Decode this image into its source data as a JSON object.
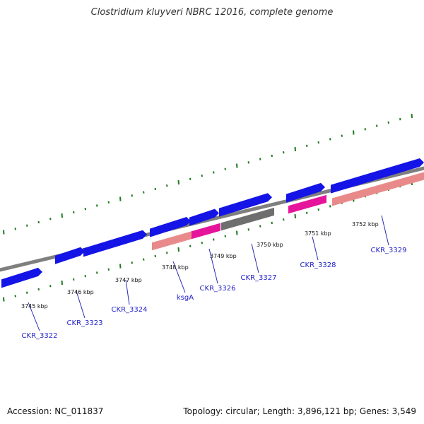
{
  "title": "Clostridium kluyveri NBRC 12016, complete genome",
  "footer": {
    "accession": "Accession: NC_011837",
    "summary": "Topology: circular; Length: 3,896,121 bp; Genes: 3,549"
  },
  "colors": {
    "backbone": "#7f7f7f",
    "tick": "#1f7a1f",
    "gene_fwd": "#1414e6",
    "gene_rev": "#1414e6",
    "rrna_light": "#e98a8a",
    "rrna_mag": "#e6149a",
    "pseudo": "#6e6e6e",
    "label": "#1e1ec8",
    "leader": "#2a2ab4"
  },
  "scale": {
    "kbp_labels": [
      "3745 kbp",
      "3746 kbp",
      "3747 kbp",
      "3748 kbp",
      "3749 kbp",
      "3750 kbp",
      "3751 kbp",
      "3752 kbp"
    ]
  },
  "genes": [
    {
      "name": "CKR_3322",
      "track": "upper",
      "type": "cds"
    },
    {
      "name": "CKR_3323",
      "track": "upper",
      "type": "cds"
    },
    {
      "name": "CKR_3324",
      "track": "upper",
      "type": "cds"
    },
    {
      "name": "ksgA",
      "track": "upper",
      "type": "cds"
    },
    {
      "name": "CKR_3326",
      "track": "upper",
      "type": "cds"
    },
    {
      "name": "CKR_3327",
      "track": "upper",
      "type": "cds"
    },
    {
      "name": "CKR_3328",
      "track": "upper",
      "type": "cds"
    },
    {
      "name": "CKR_3329",
      "track": "upper",
      "type": "cds"
    }
  ]
}
